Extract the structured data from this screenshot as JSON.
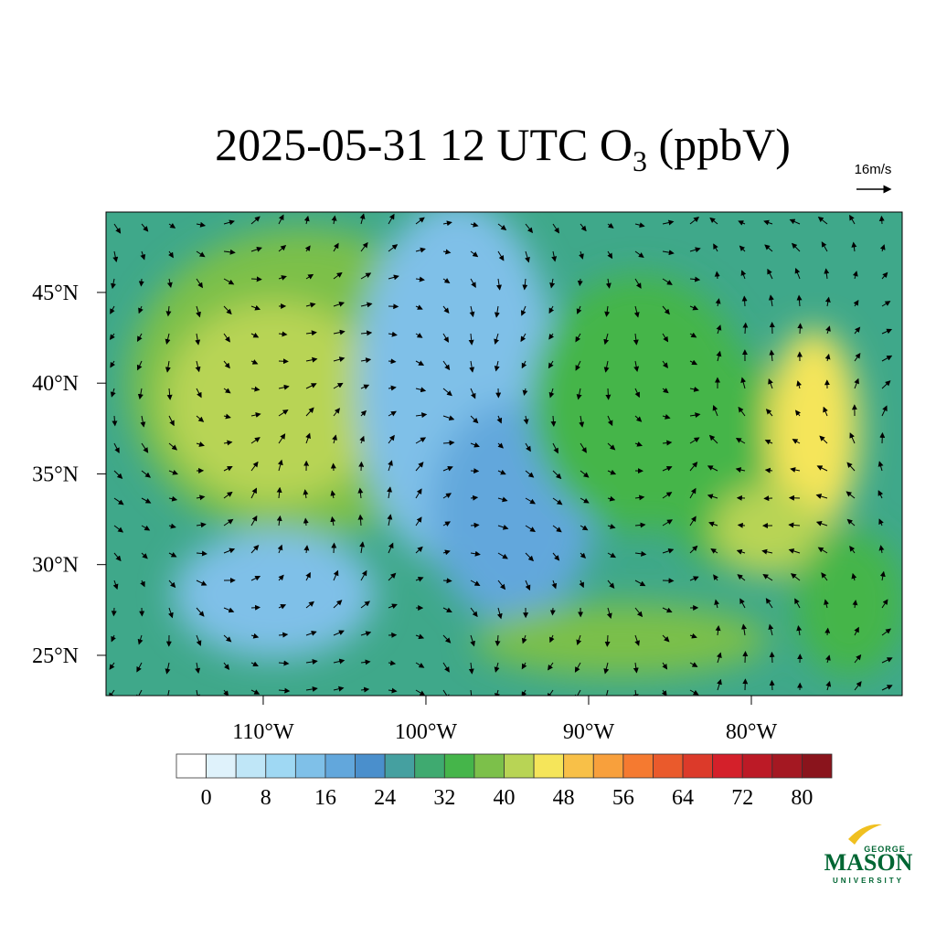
{
  "map": {
    "title": "2025-05-31 12 UTC O",
    "title_subscript": "3",
    "title_suffix": " (ppbV)",
    "vector_label": "16m/s",
    "xlim": [
      -119.66,
      -70.73
    ],
    "ylim": [
      22.78,
      49.43
    ],
    "xticks": [
      {
        "value": -110,
        "label": "110°W"
      },
      {
        "value": -100,
        "label": "100°W"
      },
      {
        "value": -90,
        "label": "90°W"
      },
      {
        "value": -80,
        "label": "80°W"
      }
    ],
    "yticks": [
      {
        "value": 25,
        "label": "25°N"
      },
      {
        "value": 30,
        "label": "30°N"
      },
      {
        "value": 35,
        "label": "35°N"
      },
      {
        "value": 40,
        "label": "40°N"
      },
      {
        "value": 45,
        "label": "45°N"
      }
    ],
    "colorbar": {
      "clim": [
        -4,
        84
      ],
      "ticks": [
        0,
        8,
        16,
        24,
        32,
        40,
        48,
        56,
        64,
        72,
        80
      ],
      "colors": [
        "#ffffff",
        "#dff2fb",
        "#bfe6f7",
        "#9fd8f3",
        "#7fc0e8",
        "#62a7dc",
        "#4a8fcc",
        "#45a0a0",
        "#3faa70",
        "#45b54a",
        "#7cc04a",
        "#b8d455",
        "#f5e55a",
        "#f8c048",
        "#f8a03c",
        "#f57a30",
        "#ea5a2c",
        "#dc3a2a",
        "#d4202a",
        "#bc1a26",
        "#a41822",
        "#8a141c"
      ]
    },
    "logo": {
      "top": "GEORGE",
      "main": "MASON",
      "bottom": "UNIVERSITY"
    }
  }
}
